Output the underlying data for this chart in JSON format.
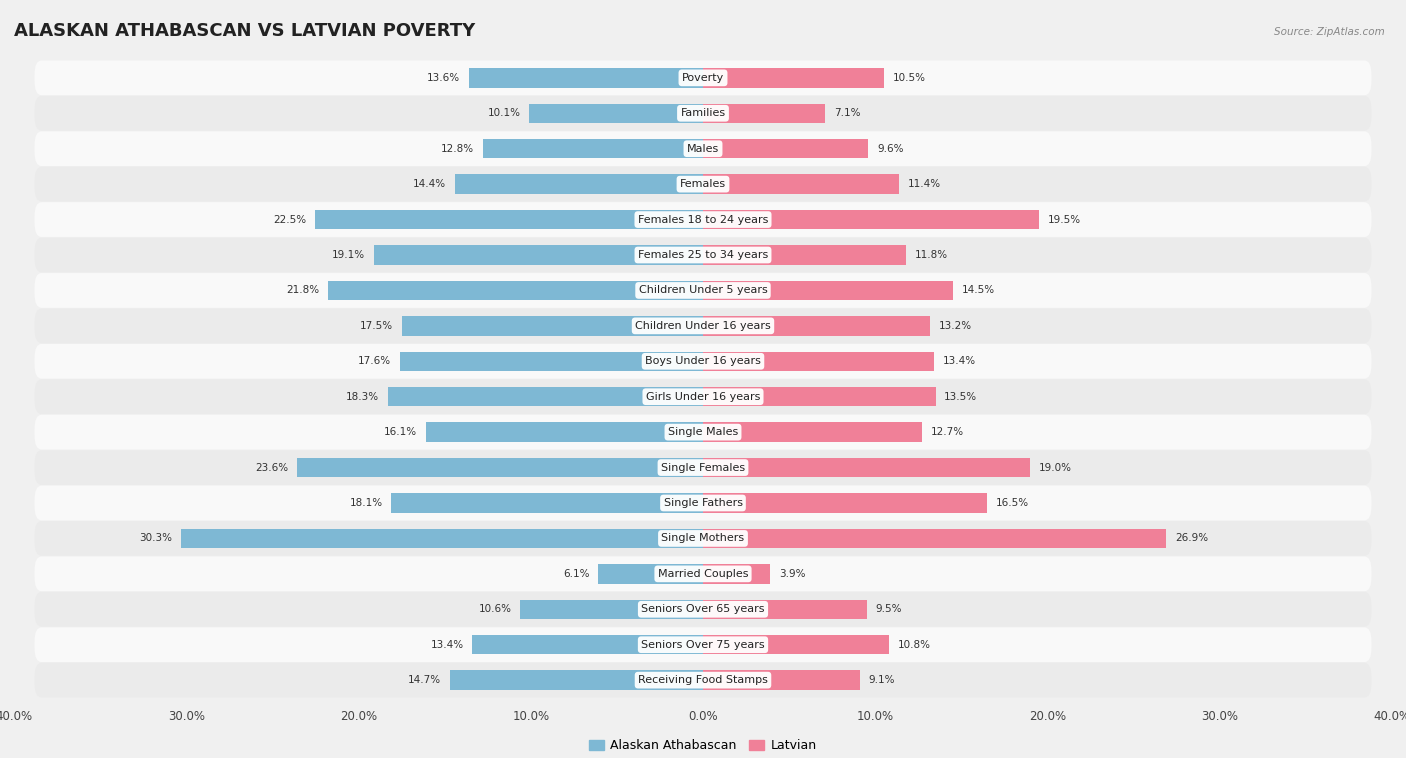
{
  "title": "ALASKAN ATHABASCAN VS LATVIAN POVERTY",
  "source": "Source: ZipAtlas.com",
  "categories": [
    "Poverty",
    "Families",
    "Males",
    "Females",
    "Females 18 to 24 years",
    "Females 25 to 34 years",
    "Children Under 5 years",
    "Children Under 16 years",
    "Boys Under 16 years",
    "Girls Under 16 years",
    "Single Males",
    "Single Females",
    "Single Fathers",
    "Single Mothers",
    "Married Couples",
    "Seniors Over 65 years",
    "Seniors Over 75 years",
    "Receiving Food Stamps"
  ],
  "alaskan_values": [
    13.6,
    10.1,
    12.8,
    14.4,
    22.5,
    19.1,
    21.8,
    17.5,
    17.6,
    18.3,
    16.1,
    23.6,
    18.1,
    30.3,
    6.1,
    10.6,
    13.4,
    14.7
  ],
  "latvian_values": [
    10.5,
    7.1,
    9.6,
    11.4,
    19.5,
    11.8,
    14.5,
    13.2,
    13.4,
    13.5,
    12.7,
    19.0,
    16.5,
    26.9,
    3.9,
    9.5,
    10.8,
    9.1
  ],
  "alaskan_color": "#7eb8d4",
  "latvian_color": "#f08098",
  "alaskan_label": "Alaskan Athabascan",
  "latvian_label": "Latvian",
  "xlim": 40.0,
  "bar_height": 0.55,
  "bg_color": "#f0f0f0",
  "row_color_light": "#f9f9f9",
  "row_color_dark": "#ebebeb",
  "title_fontsize": 13,
  "label_fontsize": 8,
  "value_fontsize": 7.5,
  "axis_label_fontsize": 8.5
}
